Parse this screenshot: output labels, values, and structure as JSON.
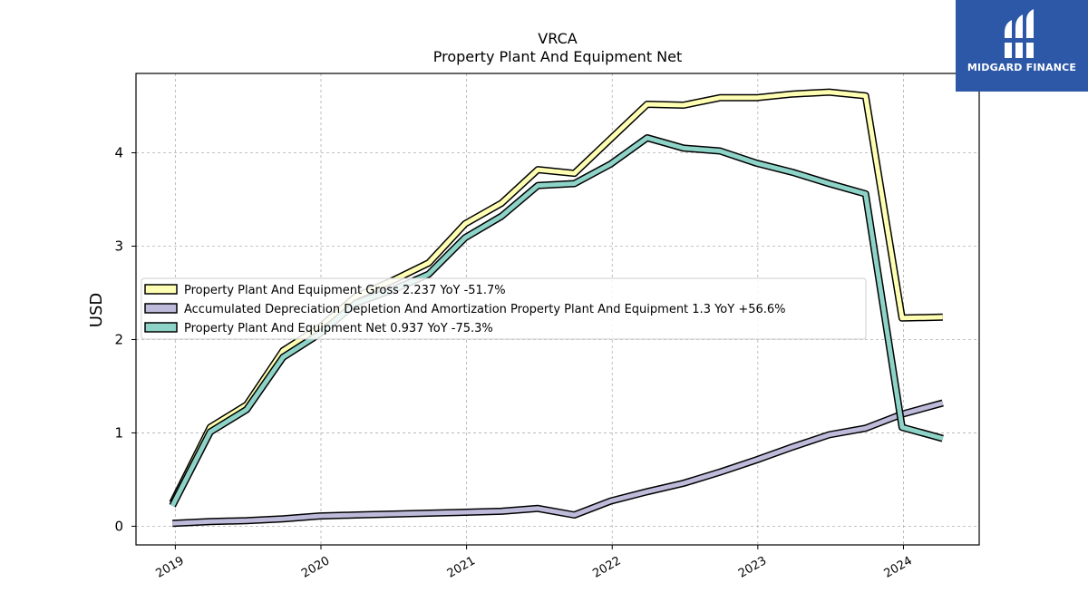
{
  "chart_data": {
    "type": "line",
    "title": "VRCA",
    "subtitle": "Property Plant And Equipment Net",
    "ylabel": "USD",
    "xlabel": "",
    "ylim": [
      -0.2,
      4.85
    ],
    "xlim": [
      2018.73,
      2024.52
    ],
    "yticks": [
      0,
      1,
      2,
      3,
      4
    ],
    "xticks": [
      2019,
      2020,
      2021,
      2022,
      2023,
      2024
    ],
    "grid": true,
    "legend_position": "center-left",
    "x": [
      2018.98,
      2019.24,
      2019.49,
      2019.74,
      2019.99,
      2020.24,
      2020.49,
      2020.74,
      2020.99,
      2021.24,
      2021.49,
      2021.74,
      2021.99,
      2022.24,
      2022.49,
      2022.74,
      2022.99,
      2023.24,
      2023.49,
      2023.74,
      2023.99,
      2024.27
    ],
    "series": [
      {
        "name": "Property Plant And Equipment Gross",
        "legend": "Property Plant And Equipment Gross  2.237 YoY -51.7%",
        "color": "#ffffb3",
        "values": [
          0.25,
          1.06,
          1.3,
          1.88,
          2.13,
          2.46,
          2.63,
          2.82,
          3.24,
          3.46,
          3.82,
          3.78,
          4.15,
          4.52,
          4.51,
          4.59,
          4.59,
          4.63,
          4.65,
          4.61,
          2.23,
          2.24
        ]
      },
      {
        "name": "Accumulated Depreciation Depletion And Amortization Property Plant And Equipment",
        "legend": "Accumulated Depreciation Depletion And Amortization Property Plant And Equipment  1.3 YoY +56.6%",
        "color": "#bebada",
        "values": [
          0.03,
          0.05,
          0.06,
          0.08,
          0.11,
          0.12,
          0.13,
          0.14,
          0.15,
          0.16,
          0.19,
          0.12,
          0.27,
          0.37,
          0.46,
          0.58,
          0.71,
          0.85,
          0.98,
          1.05,
          1.2,
          1.32
        ]
      },
      {
        "name": "Property Plant And Equipment Net",
        "legend": "Property Plant And Equipment Net  0.937 YoY -75.3%",
        "color": "#8dd3c7",
        "values": [
          0.22,
          1.01,
          1.25,
          1.81,
          2.06,
          2.39,
          2.53,
          2.7,
          3.09,
          3.32,
          3.65,
          3.67,
          3.88,
          4.16,
          4.05,
          4.02,
          3.89,
          3.79,
          3.67,
          3.56,
          1.06,
          0.94
        ]
      }
    ]
  },
  "logo": {
    "text": "MIDGARD FINANCE",
    "icon": "midgard-logo-icon",
    "background": "#2d58a7"
  }
}
